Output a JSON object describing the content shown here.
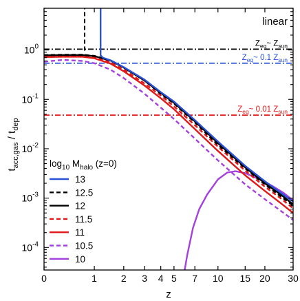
{
  "chart_data": {
    "type": "line",
    "panel_label": "linear",
    "xlabel": "z",
    "ylabel": "t_acc,gas / t_dep",
    "xscale": "log(1+z)",
    "yscale": "log",
    "xlim": [
      0,
      30
    ],
    "ylim": [
      3.5e-05,
      7
    ],
    "x_ticks": [
      0,
      1,
      2,
      3,
      4,
      5,
      7,
      10,
      15,
      20,
      30
    ],
    "y_ticks": [
      {
        "value": 0.0001,
        "base": "10",
        "exp": "-4"
      },
      {
        "value": 0.001,
        "base": "10",
        "exp": "-3"
      },
      {
        "value": 0.01,
        "base": "10",
        "exp": "-2"
      },
      {
        "value": 0.1,
        "base": "10",
        "exp": "-1"
      },
      {
        "value": 1,
        "base": "10",
        "exp": "0"
      }
    ],
    "legend_title": {
      "pre": "log",
      "sub1": "10",
      "mid": " M",
      "sub2": "halo",
      "post": " (z=0)"
    },
    "legend_placement": "lower-left",
    "series": [
      {
        "name": "13",
        "color": "#2a52d6",
        "dash": "solid",
        "x": [
          1.18,
          1.18,
          1.25,
          1.5,
          2,
          3,
          4,
          5,
          7,
          10,
          15,
          20,
          25,
          30
        ],
        "y": [
          7,
          0.78,
          0.7,
          0.62,
          0.45,
          0.25,
          0.14,
          0.09,
          0.038,
          0.014,
          0.0045,
          0.0022,
          0.0013,
          0.00085
        ]
      },
      {
        "name": "12.5",
        "color": "#000000",
        "dash": "dashed",
        "x": [
          0.0,
          0.3,
          0.7,
          1,
          1.5,
          2,
          3,
          4,
          5,
          7,
          10,
          15,
          20,
          25,
          30
        ],
        "y": [
          0.79,
          0.8,
          0.8,
          0.76,
          0.62,
          0.44,
          0.24,
          0.13,
          0.082,
          0.034,
          0.012,
          0.004,
          0.0019,
          0.0011,
          0.0007
        ]
      },
      {
        "name": "12",
        "color": "#000000",
        "dash": "solid",
        "x": [
          0.0,
          0.3,
          0.7,
          1,
          1.5,
          2,
          3,
          4,
          5,
          7,
          10,
          15,
          20,
          25,
          30
        ],
        "y": [
          0.78,
          0.79,
          0.79,
          0.75,
          0.61,
          0.44,
          0.24,
          0.135,
          0.085,
          0.036,
          0.013,
          0.0042,
          0.002,
          0.0012,
          0.00075
        ]
      },
      {
        "name": "11.5",
        "color": "#e01818",
        "dash": "dashed",
        "x": [
          0.0,
          0.3,
          0.7,
          1,
          1.5,
          2,
          3,
          4,
          5,
          7,
          10,
          15,
          20,
          25,
          30
        ],
        "y": [
          0.72,
          0.74,
          0.74,
          0.7,
          0.56,
          0.4,
          0.21,
          0.12,
          0.072,
          0.03,
          0.011,
          0.0036,
          0.0017,
          0.001,
          0.00062
        ]
      },
      {
        "name": "11",
        "color": "#e01818",
        "dash": "solid",
        "x": [
          0.0,
          0.3,
          0.7,
          1,
          1.5,
          2,
          3,
          4,
          5,
          7,
          10,
          15,
          20,
          25,
          30
        ],
        "y": [
          0.72,
          0.73,
          0.73,
          0.68,
          0.53,
          0.37,
          0.19,
          0.105,
          0.063,
          0.025,
          0.009,
          0.0029,
          0.0014,
          0.0008,
          0.0005
        ]
      },
      {
        "name": "10.5",
        "color": "#a440dd",
        "dash": "dashed",
        "x": [
          0.0,
          0.3,
          0.7,
          1,
          1.5,
          2,
          3,
          4,
          5,
          7,
          10,
          15,
          20,
          25,
          30
        ],
        "y": [
          0.58,
          0.63,
          0.6,
          0.54,
          0.4,
          0.27,
          0.13,
          0.068,
          0.04,
          0.016,
          0.0058,
          0.0019,
          0.00095,
          0.00056,
          0.00036
        ]
      },
      {
        "name": "10",
        "color": "#a440dd",
        "dash": "solid",
        "x": [
          5.95,
          6.2,
          6.8,
          7.5,
          8.5,
          10,
          11.5,
          13,
          15,
          18,
          22,
          26,
          30
        ],
        "y": [
          3.5e-05,
          7e-05,
          0.00025,
          0.0006,
          0.0012,
          0.0024,
          0.0033,
          0.0035,
          0.0032,
          0.0025,
          0.0018,
          0.0013,
          0.0009
        ]
      }
    ],
    "vertical_markers": [
      {
        "x": 0.75,
        "y_from": 0.97,
        "y_to": 7,
        "color": "#000000",
        "dash": "dashed"
      }
    ],
    "reference_lines": [
      {
        "y": 1.04,
        "color": "#000000",
        "label_pre": "Z",
        "label_sub1": "eq",
        "label_mid": "~ Z",
        "label_sub2": "sun"
      },
      {
        "y": 0.54,
        "color": "#2a52d6",
        "label_pre": "Z",
        "label_sub1": "eq",
        "label_mid": "~ 0.1 Z",
        "label_sub2": "sun"
      },
      {
        "y": 0.048,
        "color": "#e01818",
        "label_pre": "Z",
        "label_sub1": "eq",
        "label_mid": "~ 0.01 Z",
        "label_sub2": "sun"
      }
    ],
    "grid": false
  }
}
